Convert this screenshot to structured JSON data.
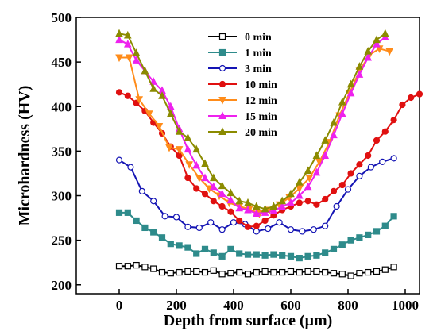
{
  "chart_data": {
    "type": "line",
    "xlabel": "Depth from surface (μm)",
    "ylabel": "Microhardness (HV)",
    "xlim": [
      -150,
      1050
    ],
    "ylim": [
      190,
      500
    ],
    "xticks": [
      0,
      200,
      400,
      600,
      800,
      1000
    ],
    "yticks": [
      200,
      250,
      300,
      350,
      400,
      450,
      500
    ],
    "xtick_labels": [
      "0",
      "200",
      "400",
      "600",
      "800",
      "1000"
    ],
    "ytick_labels": [
      "200",
      "250",
      "300",
      "350",
      "400",
      "450",
      "500"
    ],
    "legend_position": "top-center",
    "grid": false,
    "series": [
      {
        "name": "0 min",
        "color": "#000000",
        "marker": "square",
        "filled": false,
        "points": [
          [
            0,
            221
          ],
          [
            30,
            221
          ],
          [
            60,
            222
          ],
          [
            90,
            220
          ],
          [
            120,
            218
          ],
          [
            150,
            214
          ],
          [
            180,
            213
          ],
          [
            210,
            214
          ],
          [
            240,
            215
          ],
          [
            270,
            215
          ],
          [
            300,
            214
          ],
          [
            330,
            216
          ],
          [
            360,
            212
          ],
          [
            390,
            213
          ],
          [
            420,
            214
          ],
          [
            450,
            212
          ],
          [
            480,
            214
          ],
          [
            510,
            215
          ],
          [
            540,
            214
          ],
          [
            570,
            214
          ],
          [
            600,
            215
          ],
          [
            630,
            214
          ],
          [
            660,
            215
          ],
          [
            690,
            215
          ],
          [
            720,
            214
          ],
          [
            750,
            213
          ],
          [
            780,
            212
          ],
          [
            810,
            210
          ],
          [
            840,
            213
          ],
          [
            870,
            214
          ],
          [
            900,
            215
          ],
          [
            930,
            217
          ],
          [
            960,
            220
          ]
        ]
      },
      {
        "name": "1 min",
        "color": "#2e8b8b",
        "marker": "square",
        "filled": true,
        "points": [
          [
            0,
            281
          ],
          [
            30,
            281
          ],
          [
            60,
            272
          ],
          [
            90,
            264
          ],
          [
            120,
            259
          ],
          [
            150,
            253
          ],
          [
            180,
            246
          ],
          [
            210,
            244
          ],
          [
            240,
            242
          ],
          [
            270,
            235
          ],
          [
            300,
            240
          ],
          [
            330,
            236
          ],
          [
            360,
            232
          ],
          [
            390,
            240
          ],
          [
            420,
            235
          ],
          [
            450,
            234
          ],
          [
            480,
            234
          ],
          [
            510,
            233
          ],
          [
            540,
            234
          ],
          [
            570,
            233
          ],
          [
            600,
            232
          ],
          [
            630,
            230
          ],
          [
            660,
            232
          ],
          [
            690,
            233
          ],
          [
            720,
            236
          ],
          [
            750,
            240
          ],
          [
            780,
            245
          ],
          [
            810,
            250
          ],
          [
            840,
            253
          ],
          [
            870,
            256
          ],
          [
            900,
            260
          ],
          [
            930,
            266
          ],
          [
            960,
            277
          ]
        ]
      },
      {
        "name": "3 min",
        "color": "#1414b4",
        "marker": "circle",
        "filled": false,
        "points": [
          [
            0,
            340
          ],
          [
            40,
            332
          ],
          [
            80,
            305
          ],
          [
            120,
            294
          ],
          [
            160,
            277
          ],
          [
            200,
            276
          ],
          [
            240,
            265
          ],
          [
            280,
            264
          ],
          [
            320,
            270
          ],
          [
            360,
            262
          ],
          [
            400,
            270
          ],
          [
            440,
            268
          ],
          [
            480,
            260
          ],
          [
            520,
            263
          ],
          [
            560,
            270
          ],
          [
            600,
            262
          ],
          [
            640,
            260
          ],
          [
            680,
            262
          ],
          [
            720,
            266
          ],
          [
            760,
            288
          ],
          [
            800,
            307
          ],
          [
            840,
            322
          ],
          [
            880,
            332
          ],
          [
            920,
            338
          ],
          [
            960,
            342
          ]
        ]
      },
      {
        "name": "10 min",
        "color": "#e01010",
        "marker": "circle",
        "filled": true,
        "points": [
          [
            0,
            416
          ],
          [
            30,
            412
          ],
          [
            60,
            404
          ],
          [
            90,
            395
          ],
          [
            120,
            382
          ],
          [
            150,
            370
          ],
          [
            180,
            355
          ],
          [
            210,
            345
          ],
          [
            240,
            320
          ],
          [
            270,
            308
          ],
          [
            300,
            302
          ],
          [
            330,
            294
          ],
          [
            360,
            288
          ],
          [
            390,
            282
          ],
          [
            420,
            272
          ],
          [
            450,
            265
          ],
          [
            480,
            266
          ],
          [
            510,
            272
          ],
          [
            540,
            278
          ],
          [
            570,
            284
          ],
          [
            600,
            288
          ],
          [
            630,
            292
          ],
          [
            660,
            294
          ],
          [
            690,
            290
          ],
          [
            720,
            296
          ],
          [
            750,
            305
          ],
          [
            780,
            312
          ],
          [
            810,
            325
          ],
          [
            840,
            335
          ],
          [
            870,
            345
          ],
          [
            900,
            362
          ],
          [
            930,
            372
          ],
          [
            960,
            385
          ],
          [
            990,
            402
          ],
          [
            1020,
            410
          ],
          [
            1050,
            414
          ]
        ]
      },
      {
        "name": "12 min",
        "color": "#ff8c1a",
        "marker": "triangle-down",
        "filled": true,
        "points": [
          [
            0,
            455
          ],
          [
            35,
            455
          ],
          [
            70,
            408
          ],
          [
            105,
            392
          ],
          [
            140,
            378
          ],
          [
            175,
            354
          ],
          [
            210,
            352
          ],
          [
            245,
            335
          ],
          [
            280,
            320
          ],
          [
            315,
            308
          ],
          [
            350,
            300
          ],
          [
            385,
            292
          ],
          [
            420,
            288
          ],
          [
            455,
            285
          ],
          [
            490,
            280
          ],
          [
            525,
            284
          ],
          [
            560,
            290
          ],
          [
            595,
            298
          ],
          [
            630,
            308
          ],
          [
            665,
            320
          ],
          [
            700,
            338
          ],
          [
            735,
            360
          ],
          [
            770,
            390
          ],
          [
            805,
            415
          ],
          [
            840,
            440
          ],
          [
            875,
            458
          ],
          [
            910,
            465
          ],
          [
            945,
            462
          ]
        ]
      },
      {
        "name": "15 min",
        "color": "#ee22ee",
        "marker": "triangle-up",
        "filled": true,
        "points": [
          [
            0,
            475
          ],
          [
            30,
            470
          ],
          [
            60,
            452
          ],
          [
            90,
            440
          ],
          [
            120,
            428
          ],
          [
            150,
            418
          ],
          [
            180,
            400
          ],
          [
            210,
            375
          ],
          [
            240,
            352
          ],
          [
            270,
            334
          ],
          [
            300,
            320
          ],
          [
            330,
            310
          ],
          [
            360,
            302
          ],
          [
            390,
            295
          ],
          [
            420,
            286
          ],
          [
            450,
            284
          ],
          [
            480,
            280
          ],
          [
            510,
            281
          ],
          [
            540,
            283
          ],
          [
            570,
            288
          ],
          [
            600,
            292
          ],
          [
            630,
            300
          ],
          [
            660,
            310
          ],
          [
            690,
            326
          ],
          [
            720,
            345
          ],
          [
            750,
            368
          ],
          [
            780,
            392
          ],
          [
            810,
            415
          ],
          [
            840,
            436
          ],
          [
            870,
            455
          ],
          [
            900,
            470
          ],
          [
            930,
            478
          ]
        ]
      },
      {
        "name": "20 min",
        "color": "#8b8b00",
        "marker": "triangle-up",
        "filled": true,
        "points": [
          [
            0,
            482
          ],
          [
            30,
            480
          ],
          [
            60,
            460
          ],
          [
            90,
            440
          ],
          [
            120,
            420
          ],
          [
            150,
            412
          ],
          [
            180,
            392
          ],
          [
            210,
            372
          ],
          [
            240,
            365
          ],
          [
            270,
            352
          ],
          [
            300,
            336
          ],
          [
            330,
            320
          ],
          [
            360,
            311
          ],
          [
            390,
            303
          ],
          [
            420,
            294
          ],
          [
            450,
            292
          ],
          [
            480,
            288
          ],
          [
            510,
            285
          ],
          [
            540,
            288
          ],
          [
            570,
            294
          ],
          [
            600,
            302
          ],
          [
            630,
            315
          ],
          [
            660,
            328
          ],
          [
            690,
            345
          ],
          [
            720,
            362
          ],
          [
            750,
            382
          ],
          [
            780,
            405
          ],
          [
            810,
            425
          ],
          [
            840,
            445
          ],
          [
            870,
            462
          ],
          [
            900,
            475
          ],
          [
            930,
            482
          ]
        ]
      }
    ]
  }
}
